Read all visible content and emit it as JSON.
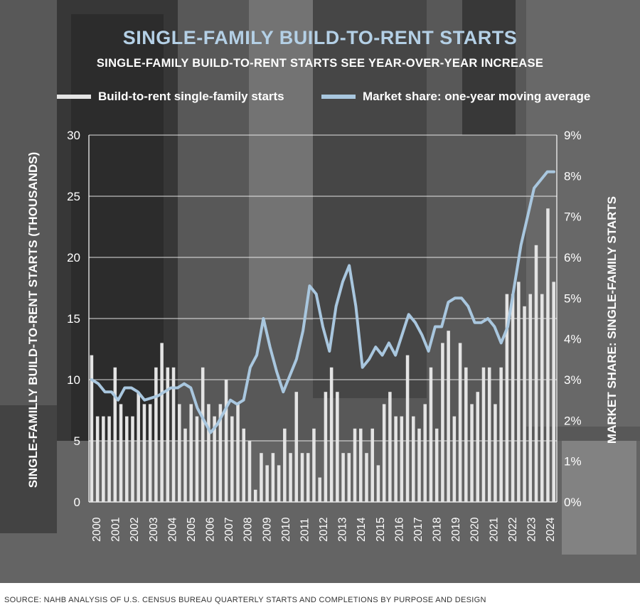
{
  "colors": {
    "bars": "#e4e4e4",
    "line": "#a9c7df",
    "title": "#b4d0e6",
    "background": "#5d5d5d"
  },
  "source": "SOURCE: NAHB ANALYSIS OF U.S. CENSUS BUREAU QUARTERLY STARTS AND COMPLETIONS BY PURPOSE AND DESIGN",
  "chart_data": {
    "type": "bar",
    "title": "SINGLE-FAMILY BUILD-TO-RENT STARTS",
    "subtitle": "SINGLE-FAMILY BUILD-TO-RENT STARTS SEE YEAR-OVER-YEAR INCREASE",
    "ylabel": "SINGLE-FAMILLY BUILD-TO-RENT STARTS  (THOUSANDS)",
    "y2label": "MARKET SHARE: SINGLE-FAMILY STARTS",
    "ylim": [
      0,
      30
    ],
    "y2lim": [
      0,
      9
    ],
    "y_ticks": [
      "0",
      "5",
      "10",
      "15",
      "20",
      "25",
      "30"
    ],
    "y2_ticks": [
      "0%",
      "1%",
      "2%",
      "3%",
      "4%",
      "5%",
      "6%",
      "7%",
      "8%",
      "9%"
    ],
    "x_labels": [
      "2000",
      "2001",
      "2002",
      "2003",
      "2004",
      "2005",
      "2006",
      "2007",
      "2008",
      "2009",
      "2010",
      "2011",
      "2012",
      "2013",
      "2014",
      "2015",
      "2016",
      "2017",
      "2018",
      "2019",
      "2020",
      "2021",
      "2022",
      "2023",
      "2024"
    ],
    "grid": true,
    "legend_position": "top",
    "series": [
      {
        "name": "Build-to-rent single-family starts",
        "type": "bar",
        "axis": "left",
        "values": [
          12,
          7,
          7,
          7,
          11,
          8,
          7,
          7,
          9,
          8,
          8,
          11,
          13,
          11,
          11,
          8,
          6,
          8,
          7,
          11,
          8,
          7,
          8,
          10,
          7,
          8,
          6,
          5,
          1,
          4,
          3,
          4,
          3,
          6,
          4,
          9,
          4,
          4,
          6,
          2,
          9,
          11,
          9,
          4,
          4,
          6,
          6,
          4,
          6,
          3,
          8,
          9,
          7,
          7,
          12,
          7,
          6,
          8,
          11,
          6,
          13,
          14,
          7,
          13,
          11,
          8,
          9,
          11,
          11,
          8,
          11,
          17,
          17,
          18,
          16,
          17,
          21,
          17,
          24,
          18
        ]
      },
      {
        "name": "Market share: one-year moving average",
        "type": "line",
        "axis": "right",
        "values": [
          3.0,
          2.9,
          2.7,
          2.7,
          2.5,
          2.8,
          2.8,
          2.7,
          2.5,
          2.55,
          2.6,
          2.7,
          2.8,
          2.8,
          2.9,
          2.8,
          2.3,
          2.0,
          1.7,
          1.9,
          2.2,
          2.5,
          2.4,
          2.5,
          3.3,
          3.6,
          4.5,
          3.8,
          3.2,
          2.7,
          3.1,
          3.5,
          4.2,
          5.3,
          5.1,
          4.3,
          3.7,
          4.8,
          5.4,
          5.8,
          4.8,
          3.3,
          3.5,
          3.8,
          3.6,
          3.9,
          3.6,
          4.1,
          4.6,
          4.4,
          4.1,
          3.7,
          4.3,
          4.3,
          4.9,
          5.0,
          5.0,
          4.8,
          4.4,
          4.4,
          4.5,
          4.3,
          3.9,
          4.3,
          5.3,
          6.3,
          7.0,
          7.7,
          7.9,
          8.1,
          8.1
        ]
      }
    ]
  }
}
